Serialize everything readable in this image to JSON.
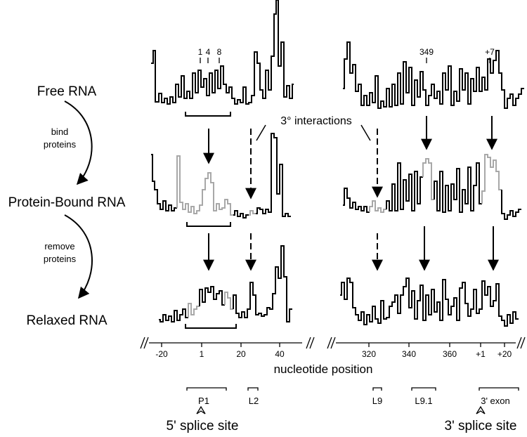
{
  "states": {
    "free": "Free RNA",
    "bound": "Protein-Bound RNA",
    "relaxed": "Relaxed RNA"
  },
  "steps": {
    "bind": [
      "bind",
      "proteins"
    ],
    "remove": [
      "remove",
      "proteins"
    ]
  },
  "annotation": "3° interactions",
  "nucleotide_marks_left": [
    "1",
    "4",
    "8"
  ],
  "nucleotide_marks_right": [
    "349",
    "+7"
  ],
  "axis": {
    "title": "nucleotide position",
    "ticks_left": [
      "-20",
      "1",
      "20",
      "40"
    ],
    "ticks_right": [
      "320",
      "340",
      "360",
      "+1",
      "+20"
    ]
  },
  "regions": [
    "P1",
    "L2",
    "L9",
    "L9.1",
    "3' exon"
  ],
  "splice_sites": {
    "five_prime": "5' splice site",
    "three_prime": "3' splice site"
  },
  "colors": {
    "trace": "#000000",
    "protected_trace": "#a8a8a8"
  }
}
